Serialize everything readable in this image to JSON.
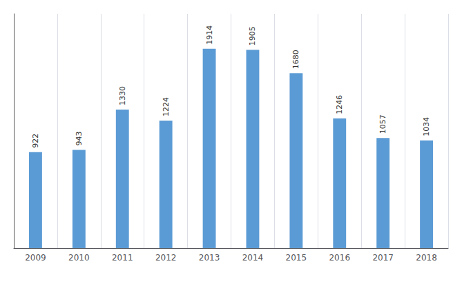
{
  "chart_data": {
    "type": "bar",
    "categories": [
      "2009",
      "2010",
      "2011",
      "2012",
      "2013",
      "2014",
      "2015",
      "2016",
      "2017",
      "2018"
    ],
    "values": [
      922,
      943,
      1330,
      1224,
      1914,
      1905,
      1680,
      1246,
      1057,
      1034
    ],
    "color": "#5B9BD5",
    "ylim": [
      0,
      2250
    ],
    "grid": true,
    "data_labels": true,
    "tick_labels": "x"
  }
}
